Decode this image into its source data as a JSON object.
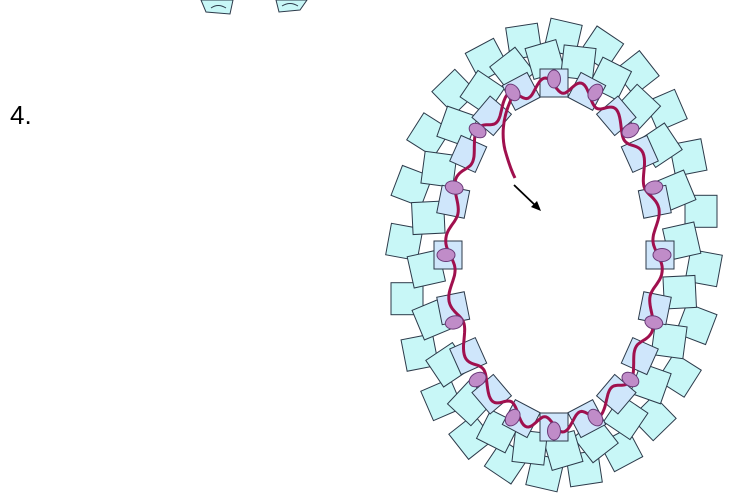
{
  "step": {
    "label": "4."
  },
  "colors": {
    "outer_bead": "#c8f7f7",
    "inner_bead": "#cfe6fb",
    "bead_stroke": "#2c3a4a",
    "thread": "#a0104e",
    "seed_bead": "#c08cc8",
    "seed_stroke": "#6a3a78",
    "arrow": "#000000"
  },
  "icons": [
    "beaded-ring-diagram",
    "thread-path",
    "direction-arrow"
  ]
}
